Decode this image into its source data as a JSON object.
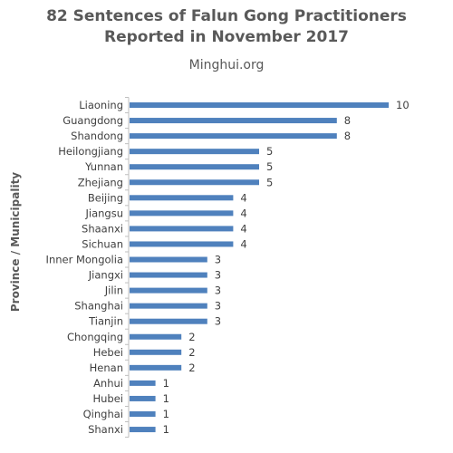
{
  "chart_data": {
    "type": "bar",
    "orientation": "horizontal",
    "title": [
      "82 Sentences of Falun Gong Practitioners",
      "Reported in November 2017"
    ],
    "subtitle": "Minghui.org",
    "xlabel": "",
    "ylabel": "Province / Municipality",
    "categories": [
      "Liaoning",
      "Guangdong",
      "Shandong",
      "Heilongjiang",
      "Yunnan",
      "Zhejiang",
      "Beijing",
      "Jiangsu",
      "Shaanxi",
      "Sichuan",
      "Inner Mongolia",
      "Jiangxi",
      "Jilin",
      "Shanghai",
      "Tianjin",
      "Chongqing",
      "Hebei",
      "Henan",
      "Anhui",
      "Hubei",
      "Qinghai",
      "Shanxi"
    ],
    "values": [
      10,
      8,
      8,
      5,
      5,
      5,
      4,
      4,
      4,
      4,
      3,
      3,
      3,
      3,
      3,
      2,
      2,
      2,
      1,
      1,
      1,
      1
    ],
    "xlim": [
      0,
      10
    ],
    "bar_color": "#4f81bd",
    "data_labels": true,
    "grid": false,
    "legend": "none"
  }
}
